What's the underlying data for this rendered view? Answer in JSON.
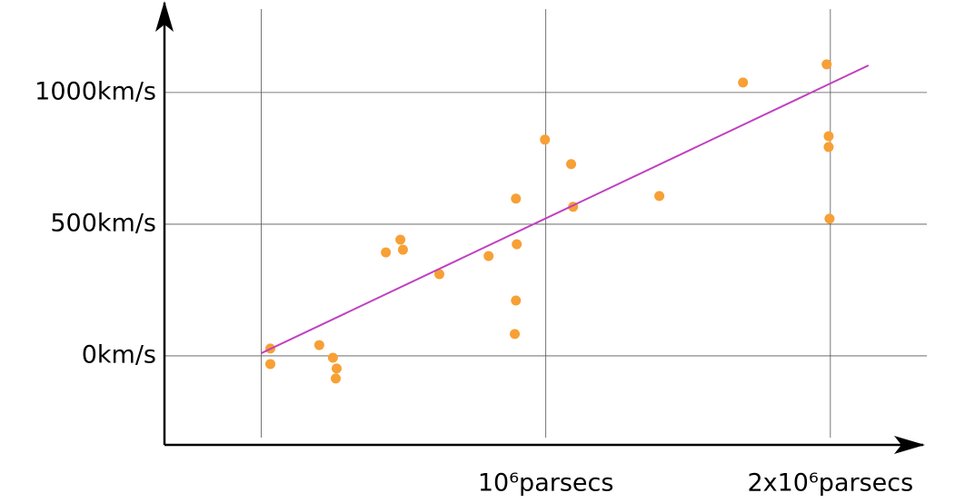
{
  "chart_data": {
    "type": "scatter",
    "x": [
      32000,
      32000,
      204000,
      252000,
      265000,
      262000,
      438000,
      489000,
      498000,
      626000,
      799000,
      895000,
      898000,
      895000,
      891000,
      997000,
      1089000,
      1096000,
      1399000,
      1693000,
      1987000,
      1994000,
      1994000,
      1997000
    ],
    "series": [
      {
        "color": "#f7a035",
        "values": [
          28,
          -31,
          41,
          -7,
          -48,
          -86,
          393,
          441,
          403,
          310,
          379,
          597,
          424,
          210,
          83,
          821,
          728,
          566,
          607,
          1038,
          1107,
          834,
          793,
          521
        ]
      }
    ],
    "fit_line": {
      "x": [
        0,
        2134000
      ],
      "y": [
        10,
        1103
      ],
      "color": "#c040c0"
    },
    "xlim": [
      -340000,
      2323000
    ],
    "ylim": [
      -338,
      1334
    ],
    "xticks": [
      {
        "value": 0,
        "label": null
      },
      {
        "value": 1000000,
        "label": "10⁶parsecs"
      },
      {
        "value": 2000000,
        "label": "2x10⁶parsecs"
      }
    ],
    "yticks": [
      {
        "value": 0,
        "label": "0km/s"
      },
      {
        "value": 500,
        "label": "500km/s"
      },
      {
        "value": 1000,
        "label": "1000km/s"
      }
    ],
    "grid": true
  }
}
